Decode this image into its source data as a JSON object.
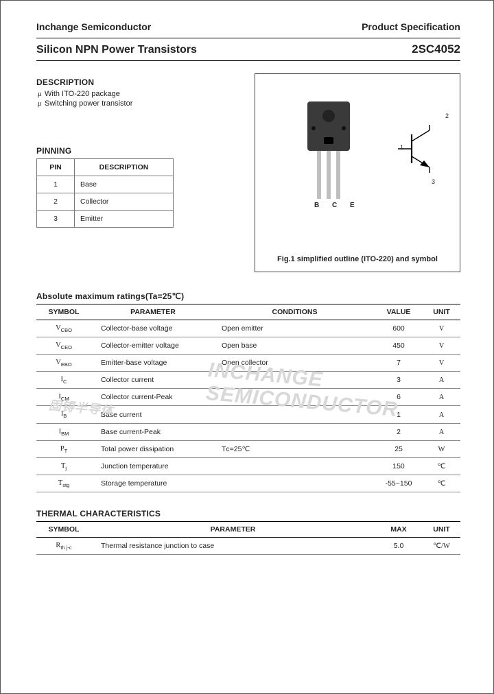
{
  "header": {
    "company": "Inchange Semiconductor",
    "doc_type": "Product Specification"
  },
  "title": {
    "left": "Silicon NPN Power Transistors",
    "part_number": "2SC4052"
  },
  "description": {
    "heading": "DESCRIPTION",
    "lines": [
      "With ITO-220 package",
      "Switching power transistor"
    ]
  },
  "pinning": {
    "heading": "PINNING",
    "columns": [
      "PIN",
      "DESCRIPTION"
    ],
    "rows": [
      [
        "1",
        "Base"
      ],
      [
        "2",
        "Collector"
      ],
      [
        "3",
        "Emitter"
      ]
    ]
  },
  "figure": {
    "pin_legend": "B C E",
    "pin_numbers": [
      "1",
      "2",
      "3"
    ],
    "caption": "Fig.1 simplified outline (ITO-220) and symbol"
  },
  "ratings": {
    "heading": "Absolute maximum ratings(Ta=25℃)",
    "columns": [
      "SYMBOL",
      "PARAMETER",
      "CONDITIONS",
      "VALUE",
      "UNIT"
    ],
    "rows": [
      {
        "sym": "V",
        "sub": "CBO",
        "param": "Collector-base voltage",
        "cond": "Open emitter",
        "val": "600",
        "unit": "V"
      },
      {
        "sym": "V",
        "sub": "CEO",
        "param": "Collector-emitter voltage",
        "cond": "Open base",
        "val": "450",
        "unit": "V"
      },
      {
        "sym": "V",
        "sub": "EBO",
        "param": "Emitter-base voltage",
        "cond": "Open collector",
        "val": "7",
        "unit": "V"
      },
      {
        "sym": "I",
        "sub": "C",
        "param": "Collector current",
        "cond": "",
        "val": "3",
        "unit": "A"
      },
      {
        "sym": "I",
        "sub": "CM",
        "param": "Collector current-Peak",
        "cond": "",
        "val": "6",
        "unit": "A"
      },
      {
        "sym": "I",
        "sub": "B",
        "param": "Base current",
        "cond": "",
        "val": "1",
        "unit": "A"
      },
      {
        "sym": "I",
        "sub": "BM",
        "param": "Base current-Peak",
        "cond": "",
        "val": "2",
        "unit": "A"
      },
      {
        "sym": "P",
        "sub": "T",
        "param": "Total power dissipation",
        "cond": "Tᴄ=25℃",
        "val": "25",
        "unit": "W"
      },
      {
        "sym": "T",
        "sub": "j",
        "param": "Junction temperature",
        "cond": "",
        "val": "150",
        "unit": "℃"
      },
      {
        "sym": "T",
        "sub": "stg",
        "param": "Storage temperature",
        "cond": "",
        "val": "-55~150",
        "unit": "℃"
      }
    ]
  },
  "thermal": {
    "heading": "THERMAL CHARACTERISTICS",
    "columns": [
      "SYMBOL",
      "PARAMETER",
      "MAX",
      "UNIT"
    ],
    "rows": [
      {
        "sym": "R",
        "sub": "th j-c",
        "param": "Thermal resistance junction to case",
        "max": "5.0",
        "unit": "℃/W"
      }
    ]
  },
  "watermark": {
    "w1": "INCHANGE SEMICONDUCTOR",
    "w2": "固锝半导体"
  },
  "colors": {
    "border": "#000000",
    "rule": "#888888",
    "text": "#222222",
    "chip": "#3a3a3a",
    "lead": "#bfbfbf"
  }
}
